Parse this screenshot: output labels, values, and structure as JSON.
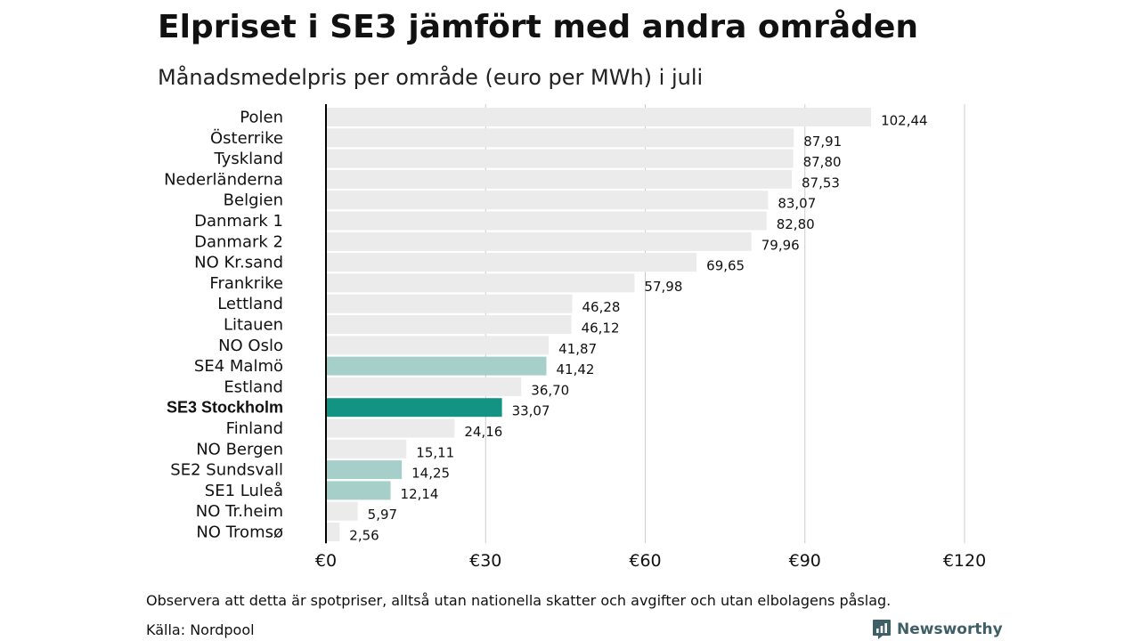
{
  "title": "Elpriset i SE3 jämfört med andra områden",
  "subtitle": "Månadsmedelpris per område (euro per MWh) i juli",
  "note": "Observera att detta är spotpriser, alltså utan nationella skatter och avgifter och utan elbolagens påslag.",
  "source": "Källa: Nordpool",
  "brand": {
    "name": "Newsworthy",
    "icon": "newsworthy-logo-icon",
    "color": "#3f5f66"
  },
  "colors": {
    "default": "#ebebeb",
    "se_highlight": "#a6cfc9",
    "se3": "#139482",
    "grid": "#cccccc",
    "axis": "#000000"
  },
  "chart_data": {
    "type": "bar",
    "orientation": "horizontal",
    "categories": [
      "Polen",
      "Österrike",
      "Tyskland",
      "Nederländerna",
      "Belgien",
      "Danmark  1",
      "Danmark  2",
      "NO Kr.sand",
      "Frankrike",
      "Lettland",
      "Litauen",
      "NO Oslo",
      "SE4  Malmö",
      "Estland",
      "SE3 Stockholm",
      "Finland",
      "NO Bergen",
      "SE2  Sundsvall",
      "SE1  Luleå",
      "NO Tr.heim",
      "NO Tromsø"
    ],
    "values": [
      102.44,
      87.91,
      87.8,
      87.53,
      83.07,
      82.8,
      79.96,
      69.65,
      57.98,
      46.28,
      46.12,
      41.87,
      41.42,
      36.7,
      33.07,
      24.16,
      15.11,
      14.25,
      12.14,
      5.97,
      2.56
    ],
    "value_labels": [
      "102,44",
      "87,91",
      "87,80",
      "87,53",
      "83,07",
      "82,80",
      "79,96",
      "69,65",
      "57,98",
      "46,28",
      "46,12",
      "41,87",
      "41,42",
      "36,70",
      "33,07",
      "24,16",
      "15,11",
      "14,25",
      "12,14",
      "5,97",
      "2,56"
    ],
    "highlight": [
      "default",
      "default",
      "default",
      "default",
      "default",
      "default",
      "default",
      "default",
      "default",
      "default",
      "default",
      "default",
      "se_highlight",
      "default",
      "se3",
      "default",
      "default",
      "se_highlight",
      "se_highlight",
      "default",
      "default"
    ],
    "bold_category": "SE3 Stockholm",
    "xlim": [
      0,
      120
    ],
    "xticks": [
      0,
      30,
      60,
      90,
      120
    ],
    "xtick_labels": [
      "€0",
      "€30",
      "€60",
      "€90",
      "€120"
    ],
    "grid": true
  }
}
